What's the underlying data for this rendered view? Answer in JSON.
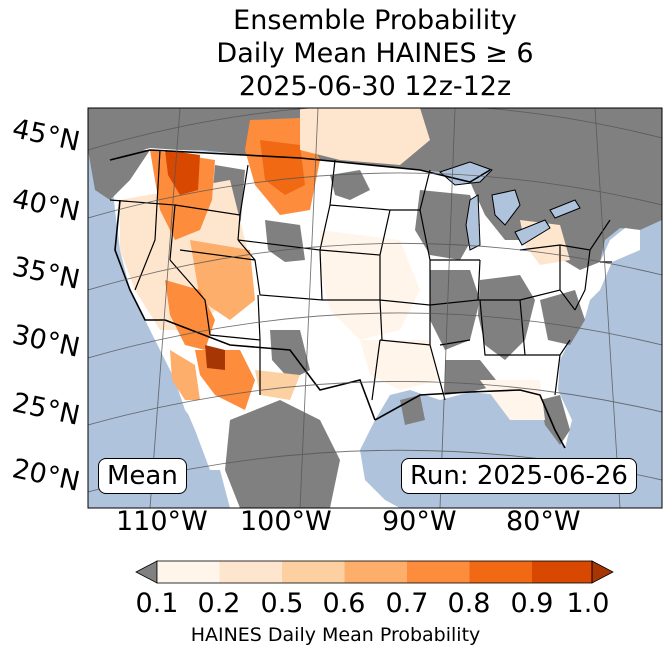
{
  "title_lines": [
    "Ensemble Probability",
    "Daily Mean HAINES ≥ 6",
    "2025-06-30 12z-12z"
  ],
  "lat_labels": [
    "45°N",
    "40°N",
    "35°N",
    "30°N",
    "25°N",
    "20°N"
  ],
  "lon_labels": [
    "110°W",
    "100°W",
    "90°W",
    "80°W"
  ],
  "stat_box": "Mean",
  "run_box": "Run: 2025-06-26",
  "colorbar": {
    "label": "HAINES Daily Mean Probability",
    "ticks": [
      "0.1",
      "0.2",
      "0.5",
      "0.6",
      "0.7",
      "0.8",
      "0.9",
      "1.0"
    ],
    "under_color": "#808080",
    "colors": [
      "#fff5eb",
      "#fee6ce",
      "#fdd0a2",
      "#fdae6b",
      "#fd8d3c",
      "#f16913",
      "#d94801",
      "#a63603"
    ]
  },
  "colors": {
    "ocean": "#afc4dc",
    "no_data_gray": "#808080",
    "land_white": "#ffffff"
  }
}
